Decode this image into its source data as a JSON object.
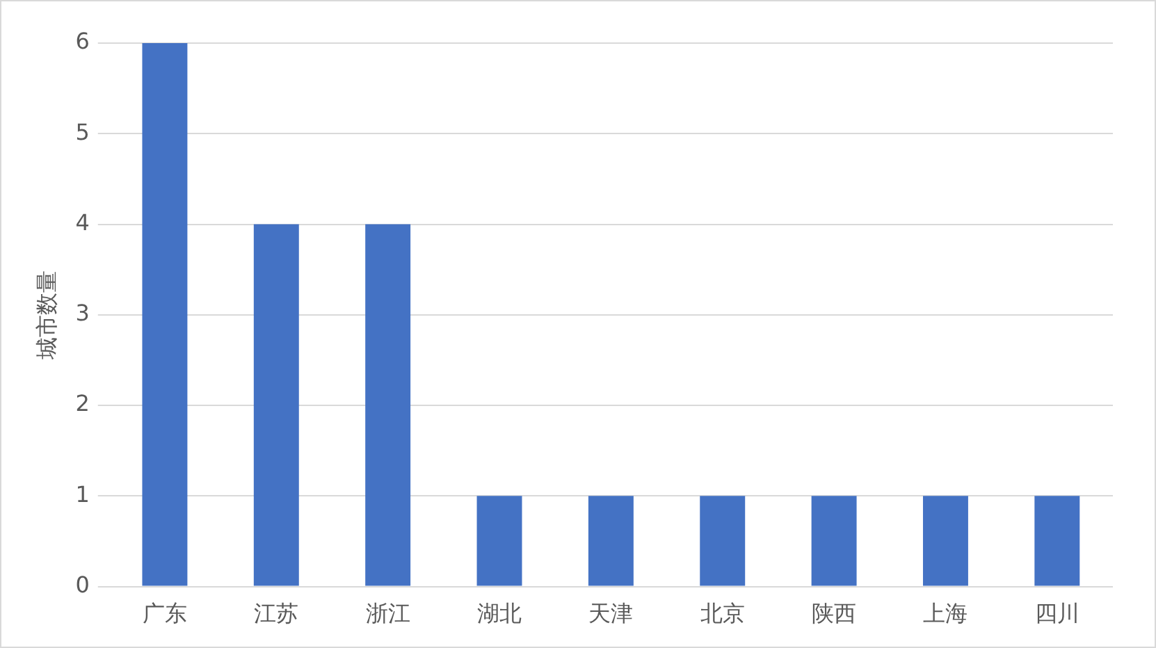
{
  "chart_data": {
    "type": "bar",
    "ylabel": "城市数量",
    "categories": [
      "广东",
      "江苏",
      "浙江",
      "湖北",
      "天津",
      "北京",
      "陕西",
      "上海",
      "四川"
    ],
    "values": [
      6,
      4,
      4,
      1,
      1,
      1,
      1,
      1,
      1
    ],
    "color": "#4472c4",
    "ylim": [
      0,
      6
    ],
    "yticks": [
      0,
      1,
      2,
      3,
      4,
      5,
      6
    ],
    "grid": "y"
  }
}
